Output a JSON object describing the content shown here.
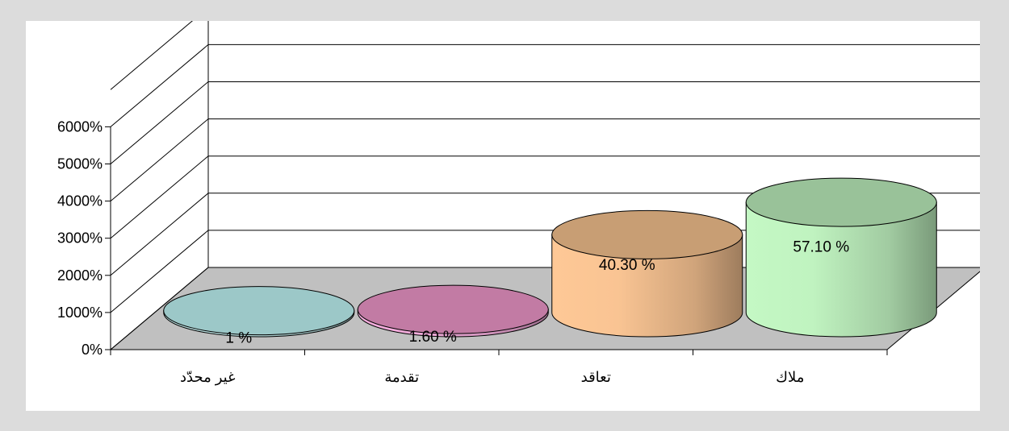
{
  "chart_data": {
    "type": "bar",
    "style": "3d-cylinder",
    "title": "",
    "xlabel": "",
    "ylabel": "",
    "categories": [
      "غير محدّد",
      "تقدمة",
      "تعاقد",
      "ملاك"
    ],
    "values": [
      1,
      1.6,
      40.3,
      57.1
    ],
    "data_labels": [
      "1 %",
      "1.60 %",
      "40.30 %",
      "57.10 %"
    ],
    "y_axis": {
      "min": 0,
      "max": 6000,
      "step": 1000,
      "tick_labels": [
        "0%",
        "1000%",
        "2000%",
        "3000%",
        "4000%",
        "5000%",
        "6000%"
      ]
    },
    "gridlines": true,
    "colors": {
      "cylinder_bodies": [
        "#bfe6e6",
        "#f6aede",
        "#fec896",
        "#c4f8c4"
      ],
      "cylinder_tops": [
        "#9cc8c8",
        "#c27ba4",
        "#c89e74",
        "#99c299"
      ],
      "floor": "#c0c0c0"
    }
  }
}
